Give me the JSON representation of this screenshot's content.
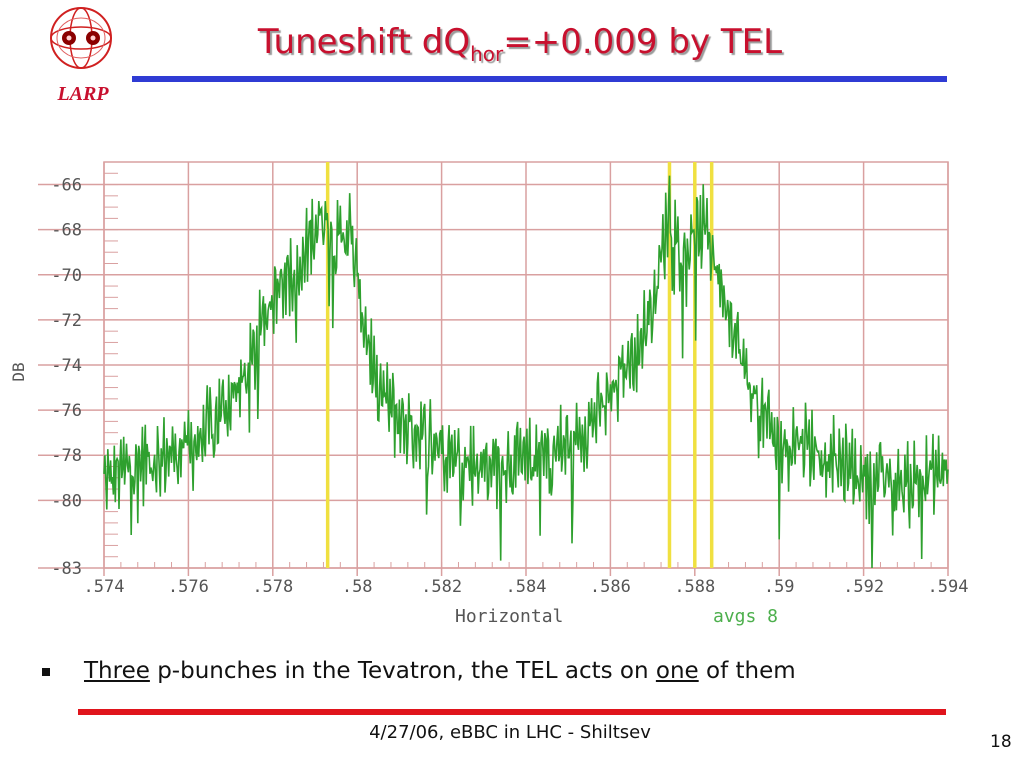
{
  "logo": {
    "text": "LARP"
  },
  "title": {
    "main": "Tuneshift dQ",
    "sub": "hor",
    "rest": "=+0.009 by TEL"
  },
  "chart_data": {
    "type": "line",
    "xlabel": "Horizontal",
    "ylabel": "DB",
    "annotation": "avgs 8",
    "xlim": [
      0.574,
      0.594
    ],
    "ylim": [
      -83,
      -65
    ],
    "xticks": [
      0.574,
      0.576,
      0.578,
      0.58,
      0.582,
      0.584,
      0.586,
      0.588,
      0.59,
      0.592,
      0.594
    ],
    "xtick_labels": [
      ".574",
      ".576",
      ".578",
      ".58",
      ".582",
      ".584",
      ".586",
      ".588",
      ".59",
      ".592",
      ".594"
    ],
    "yticks": [
      -66,
      -68,
      -70,
      -72,
      -74,
      -76,
      -78,
      -80,
      -83
    ],
    "ytick_labels": [
      "-66",
      "-68",
      "-70",
      "-72",
      "-74",
      "-76",
      "-78",
      "-80",
      "-83"
    ],
    "grid": true,
    "colors": {
      "trace": "#2ea02e",
      "marker": "#f0e040",
      "grid": "#d9a0a0",
      "axis_text": "#555555",
      "annotation": "#4caf4c"
    },
    "vertical_markers": [
      0.5793,
      0.5874,
      0.588,
      0.5884
    ],
    "envelope": {
      "x": [
        0.574,
        0.5748,
        0.5755,
        0.5762,
        0.5768,
        0.5774,
        0.5778,
        0.5782,
        0.5786,
        0.5789,
        0.5792,
        0.5795,
        0.5798,
        0.5801,
        0.5805,
        0.581,
        0.5815,
        0.582,
        0.5825,
        0.583,
        0.5835,
        0.584,
        0.5845,
        0.585,
        0.5855,
        0.586,
        0.5864,
        0.5868,
        0.5871,
        0.5874,
        0.5877,
        0.588,
        0.5883,
        0.5886,
        0.5889,
        0.5892,
        0.5896,
        0.59,
        0.5905,
        0.591,
        0.5915,
        0.592,
        0.5925,
        0.593,
        0.5935,
        0.594
      ],
      "y": [
        -79.2,
        -78.3,
        -78.0,
        -77.5,
        -76.0,
        -74.5,
        -72.0,
        -69.8,
        -70.5,
        -68.2,
        -67.2,
        -68.8,
        -67.8,
        -71.5,
        -75.0,
        -76.5,
        -77.0,
        -77.5,
        -78.2,
        -78.5,
        -78.3,
        -78.4,
        -78.0,
        -77.5,
        -76.6,
        -75.5,
        -74.0,
        -72.5,
        -70.5,
        -67.0,
        -69.2,
        -68.2,
        -68.0,
        -70.3,
        -72.0,
        -74.5,
        -76.2,
        -77.8,
        -77.2,
        -78.0,
        -78.5,
        -78.9,
        -79.1,
        -79.3,
        -79.0,
        -78.6
      ]
    }
  },
  "bullet": {
    "w1": "Three",
    "w2": " p-bunches in the Tevatron, the TEL acts on ",
    "w3": "one",
    "w4": " of them"
  },
  "footer": {
    "text": "4/27/06, eBBC in LHC  - Shiltsev",
    "page": "18"
  }
}
